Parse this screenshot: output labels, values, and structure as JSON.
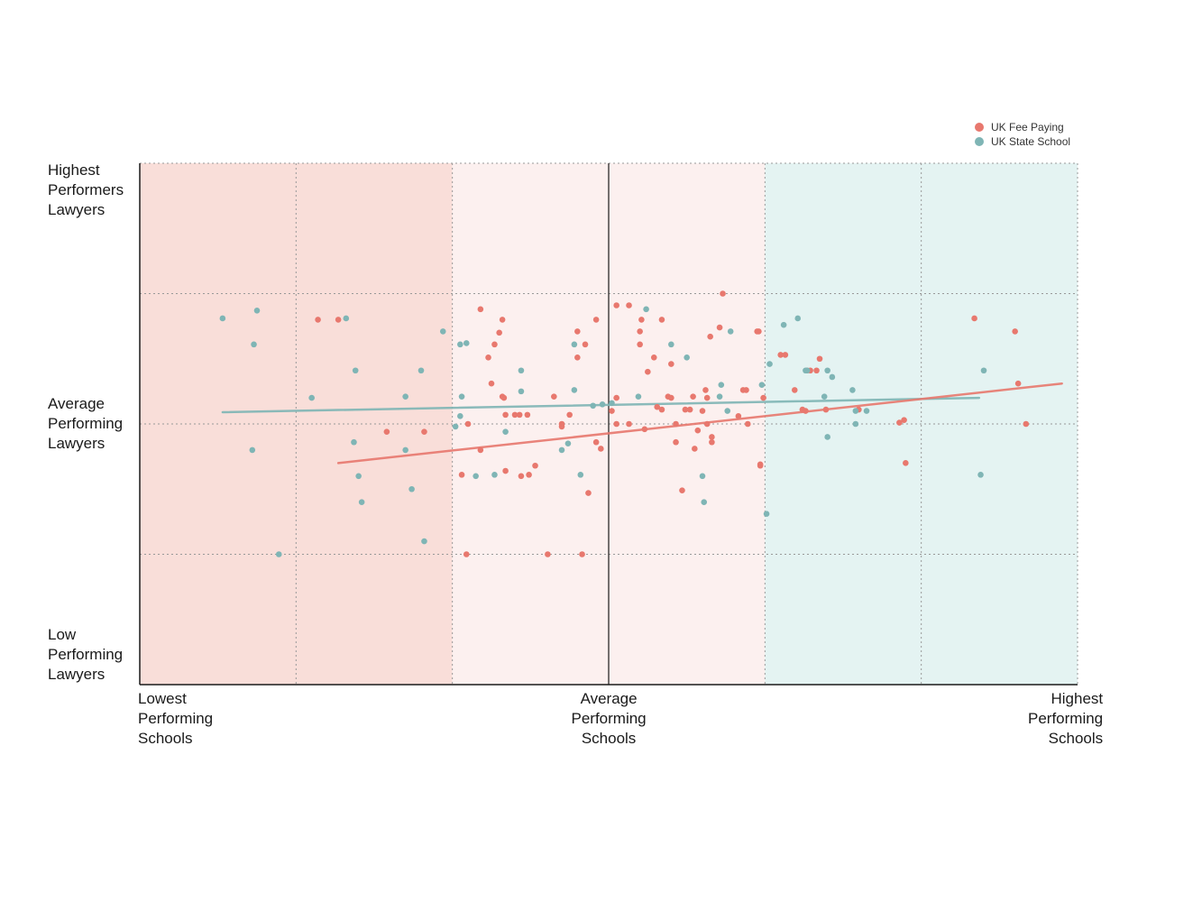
{
  "chart_data": {
    "type": "scatter",
    "xlim": [
      -3,
      3
    ],
    "ylim": [
      -2,
      2
    ],
    "colors": {
      "fee": "#e8786e",
      "state": "#7fb5b5",
      "grid": "#999999",
      "axis": "#1a1a1a",
      "band_low_strong": "#f9ded9",
      "band_low_light": "#fcf0ef",
      "band_high": "#e4f3f2"
    },
    "bands": [
      {
        "x0": -3,
        "x1": -1,
        "color": "#f9ded9"
      },
      {
        "x0": -1,
        "x1": 1,
        "color": "#fcf0ef"
      },
      {
        "x0": 1,
        "x1": 3,
        "color": "#e4f3f2"
      }
    ],
    "x_tick_labels": [
      {
        "value": -3,
        "text": "Lowest\nPerforming\nSchools",
        "align": "left"
      },
      {
        "value": 0,
        "text": "Average\nPerforming\nSchools",
        "align": "center"
      },
      {
        "value": 3,
        "text": "Highest\nPerforming\nSchools",
        "align": "right"
      }
    ],
    "y_tick_labels": [
      {
        "value": 2,
        "text": "Highest\nPerformers\nLawyers"
      },
      {
        "value": 0,
        "text": "Average\nPerforming\nLawyers"
      },
      {
        "value": -2,
        "text": "Low\nPerforming\nLawyers"
      }
    ],
    "legend": {
      "position": "top-right",
      "entries": [
        {
          "name": "UK Fee Paying",
          "color": "#e8786e"
        },
        {
          "name": "UK State School",
          "color": "#7fb5b5"
        }
      ]
    },
    "series": [
      {
        "name": "UK Fee Paying",
        "color": "#e8786e",
        "trendline": [
          [
            -1.73,
            -0.3
          ],
          [
            2.9,
            0.31
          ]
        ],
        "points": [
          [
            -1.73,
            0.8
          ],
          [
            -1.18,
            -0.06
          ],
          [
            -0.82,
            0.88
          ],
          [
            -0.66,
            -0.36
          ],
          [
            -0.82,
            -0.2
          ],
          [
            -0.91,
            -1.0
          ],
          [
            -0.94,
            -0.39
          ],
          [
            -0.9,
            0.0
          ],
          [
            -0.77,
            0.51
          ],
          [
            -0.75,
            0.31
          ],
          [
            -0.73,
            0.61
          ],
          [
            -0.7,
            0.7
          ],
          [
            -0.68,
            0.8
          ],
          [
            -0.67,
            0.2
          ],
          [
            -0.66,
            0.07
          ],
          [
            -0.68,
            0.21
          ],
          [
            -0.6,
            0.07
          ],
          [
            -0.57,
            0.07
          ],
          [
            -0.52,
            0.07
          ],
          [
            -0.51,
            -0.39
          ],
          [
            -0.47,
            -0.32
          ],
          [
            -0.35,
            0.21
          ],
          [
            -0.3,
            0.0
          ],
          [
            -0.3,
            -0.02
          ],
          [
            -0.25,
            0.07
          ],
          [
            -0.2,
            0.71
          ],
          [
            -0.2,
            0.51
          ],
          [
            -0.17,
            -1.0
          ],
          [
            -0.15,
            0.61
          ],
          [
            -0.13,
            -0.53
          ],
          [
            -0.08,
            0.8
          ],
          [
            -0.08,
            -0.14
          ],
          [
            -0.05,
            -0.19
          ],
          [
            0.02,
            0.1
          ],
          [
            0.05,
            0.2
          ],
          [
            0.05,
            0.91
          ],
          [
            0.05,
            0.0
          ],
          [
            0.13,
            0.91
          ],
          [
            0.13,
            0.0
          ],
          [
            0.2,
            0.61
          ],
          [
            0.2,
            0.71
          ],
          [
            0.21,
            0.8
          ],
          [
            0.23,
            -0.04
          ],
          [
            0.25,
            0.4
          ],
          [
            0.29,
            0.51
          ],
          [
            0.31,
            0.13
          ],
          [
            0.34,
            0.11
          ],
          [
            0.34,
            0.8
          ],
          [
            0.38,
            0.21
          ],
          [
            0.4,
            0.2
          ],
          [
            0.4,
            0.46
          ],
          [
            0.43,
            -0.14
          ],
          [
            0.43,
            0.0
          ],
          [
            0.47,
            -0.51
          ],
          [
            0.49,
            0.11
          ],
          [
            0.52,
            0.11
          ],
          [
            0.54,
            0.21
          ],
          [
            0.55,
            -0.19
          ],
          [
            0.57,
            -0.05
          ],
          [
            0.6,
            0.1
          ],
          [
            0.62,
            0.26
          ],
          [
            0.63,
            0.2
          ],
          [
            0.63,
            0.0
          ],
          [
            0.65,
            0.67
          ],
          [
            0.66,
            -0.1
          ],
          [
            0.66,
            -0.14
          ],
          [
            0.71,
            0.74
          ],
          [
            0.73,
            1.0
          ],
          [
            0.83,
            0.06
          ],
          [
            0.86,
            0.26
          ],
          [
            0.88,
            0.26
          ],
          [
            0.89,
            0.0
          ],
          [
            0.96,
            0.71
          ],
          [
            0.95,
            0.71
          ],
          [
            0.97,
            -0.32
          ],
          [
            0.97,
            -0.31
          ],
          [
            0.99,
            0.2
          ],
          [
            1.1,
            0.53
          ],
          [
            1.13,
            0.53
          ],
          [
            1.19,
            0.26
          ],
          [
            1.24,
            0.11
          ],
          [
            1.26,
            0.1
          ],
          [
            1.27,
            0.41
          ],
          [
            1.29,
            0.41
          ],
          [
            1.33,
            0.41
          ],
          [
            1.35,
            0.5
          ],
          [
            1.39,
            0.11
          ],
          [
            1.6,
            0.11
          ],
          [
            1.86,
            0.01
          ],
          [
            1.89,
            0.03
          ],
          [
            1.9,
            -0.3
          ],
          [
            2.34,
            0.81
          ],
          [
            2.6,
            0.71
          ],
          [
            2.62,
            0.31
          ],
          [
            2.67,
            0.0
          ],
          [
            -1.42,
            -0.06
          ],
          [
            -1.86,
            0.8
          ],
          [
            -0.56,
            -0.4
          ],
          [
            -0.39,
            -1.0
          ]
        ]
      },
      {
        "name": "UK State School",
        "color": "#7fb5b5",
        "trendline": [
          [
            -2.47,
            0.09
          ],
          [
            2.37,
            0.2
          ]
        ],
        "points": [
          [
            -2.47,
            0.81
          ],
          [
            -2.25,
            0.87
          ],
          [
            -2.27,
            0.61
          ],
          [
            -2.28,
            -0.2
          ],
          [
            -2.11,
            -1.0
          ],
          [
            -1.9,
            0.2
          ],
          [
            -1.68,
            0.81
          ],
          [
            -1.62,
            0.41
          ],
          [
            -1.63,
            -0.14
          ],
          [
            -1.6,
            -0.4
          ],
          [
            -1.58,
            -0.6
          ],
          [
            -1.3,
            0.21
          ],
          [
            -1.3,
            -0.2
          ],
          [
            -1.26,
            -0.5
          ],
          [
            -1.2,
            0.41
          ],
          [
            -1.18,
            -0.9
          ],
          [
            -1.06,
            0.71
          ],
          [
            -0.98,
            -0.02
          ],
          [
            -0.95,
            0.06
          ],
          [
            -0.94,
            0.21
          ],
          [
            -0.91,
            0.62
          ],
          [
            -0.95,
            0.61
          ],
          [
            -0.85,
            -0.4
          ],
          [
            -0.66,
            -0.06
          ],
          [
            -0.56,
            0.41
          ],
          [
            -0.56,
            0.25
          ],
          [
            -0.3,
            -0.2
          ],
          [
            -0.22,
            0.26
          ],
          [
            -0.22,
            0.61
          ],
          [
            -0.18,
            -0.39
          ],
          [
            -0.1,
            0.14
          ],
          [
            -0.04,
            0.15
          ],
          [
            0.02,
            0.16
          ],
          [
            0.19,
            0.21
          ],
          [
            0.24,
            0.88
          ],
          [
            0.4,
            0.61
          ],
          [
            0.5,
            0.51
          ],
          [
            0.6,
            -0.4
          ],
          [
            0.61,
            -0.6
          ],
          [
            0.71,
            0.21
          ],
          [
            0.72,
            0.3
          ],
          [
            0.76,
            0.1
          ],
          [
            0.78,
            0.71
          ],
          [
            0.98,
            0.3
          ],
          [
            1.03,
            0.46
          ],
          [
            1.12,
            0.76
          ],
          [
            1.21,
            0.81
          ],
          [
            1.26,
            0.41
          ],
          [
            1.27,
            0.41
          ],
          [
            1.38,
            0.21
          ],
          [
            1.4,
            -0.1
          ],
          [
            1.4,
            0.41
          ],
          [
            1.43,
            0.36
          ],
          [
            1.56,
            0.26
          ],
          [
            1.58,
            0.1
          ],
          [
            1.58,
            0.0
          ],
          [
            1.65,
            0.1
          ],
          [
            1.01,
            -0.69
          ],
          [
            2.4,
            0.41
          ],
          [
            2.38,
            -0.39
          ],
          [
            -0.26,
            -0.15
          ],
          [
            -0.73,
            -0.39
          ]
        ]
      }
    ]
  }
}
